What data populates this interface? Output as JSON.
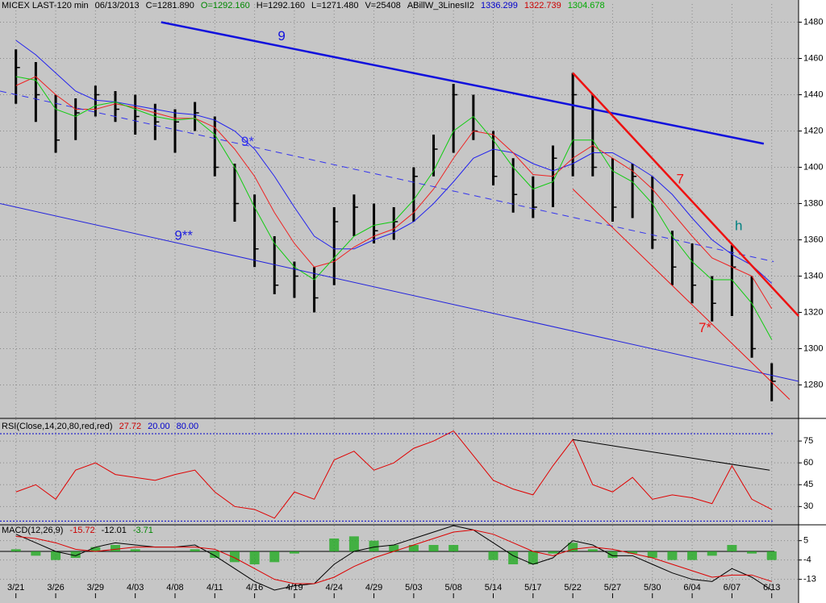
{
  "chart_data": [
    {
      "type": "ohlc",
      "header": [
        {
          "text": "MICEX LAST-120 min",
          "color": "#000000"
        },
        {
          "text": "06/13/2013",
          "color": "#000000"
        },
        {
          "text": "C=1281.890",
          "color": "#000000"
        },
        {
          "text": "O=1292.160",
          "color": "#008800"
        },
        {
          "text": "H=1292.160",
          "color": "#000000"
        },
        {
          "text": "L=1271.480",
          "color": "#000000"
        },
        {
          "text": "V=25408",
          "color": "#000000"
        },
        {
          "text": "ABillW_3LinesII2",
          "color": "#000000"
        },
        {
          "text": "1336.299",
          "color": "#0000cc"
        },
        {
          "text": "1322.739",
          "color": "#cc0000"
        },
        {
          "text": "1304.678",
          "color": "#00aa00"
        }
      ],
      "categories": [
        "3/21",
        null,
        "3/26",
        null,
        "3/29",
        null,
        "4/03",
        null,
        "4/08",
        null,
        "4/11",
        null,
        "4/16",
        null,
        "4/19",
        null,
        "4/24",
        null,
        "4/29",
        null,
        "5/03",
        null,
        "5/08",
        null,
        "5/14",
        null,
        "5/17",
        null,
        "5/22",
        null,
        "5/27",
        null,
        "5/30",
        null,
        "6/04",
        null,
        "6/07",
        null,
        "6/13"
      ],
      "high": [
        1465,
        1458,
        1440,
        1438,
        1445,
        1442,
        1440,
        1435,
        1432,
        1436,
        1428,
        1402,
        1385,
        1362,
        1348,
        1345,
        1378,
        1385,
        1380,
        1378,
        1400,
        1418,
        1446,
        1440,
        1420,
        1405,
        1395,
        1412,
        1452,
        1440,
        1405,
        1402,
        1395,
        1365,
        1358,
        1340,
        1357,
        1340,
        1292
      ],
      "low": [
        1435,
        1425,
        1408,
        1415,
        1428,
        1425,
        1418,
        1415,
        1408,
        1420,
        1395,
        1370,
        1345,
        1330,
        1328,
        1320,
        1335,
        1362,
        1358,
        1360,
        1370,
        1395,
        1408,
        1415,
        1390,
        1375,
        1372,
        1378,
        1395,
        1395,
        1370,
        1372,
        1355,
        1335,
        1325,
        1315,
        1318,
        1295,
        1271
      ],
      "close": [
        1455,
        1440,
        1415,
        1430,
        1440,
        1432,
        1428,
        1425,
        1425,
        1430,
        1400,
        1380,
        1355,
        1335,
        1340,
        1328,
        1370,
        1378,
        1365,
        1370,
        1395,
        1410,
        1440,
        1420,
        1395,
        1385,
        1378,
        1405,
        1440,
        1400,
        1378,
        1395,
        1360,
        1345,
        1335,
        1325,
        1345,
        1300,
        1282
      ],
      "bar_color": "#000000",
      "series": [
        {
          "color": "#2222ee",
          "values": [
            1470,
            1462,
            1452,
            1442,
            1437,
            1436,
            1434,
            1432,
            1430,
            1429,
            1426,
            1420,
            1410,
            1395,
            1378,
            1362,
            1355,
            1355,
            1360,
            1364,
            1370,
            1380,
            1392,
            1405,
            1410,
            1408,
            1402,
            1398,
            1402,
            1408,
            1408,
            1402,
            1395,
            1385,
            1372,
            1360,
            1352,
            1346,
            1336
          ]
        },
        {
          "color": "#ee2222",
          "values": [
            1445,
            1450,
            1440,
            1432,
            1432,
            1435,
            1433,
            1430,
            1427,
            1427,
            1422,
            1410,
            1395,
            1375,
            1358,
            1345,
            1348,
            1356,
            1362,
            1366,
            1375,
            1388,
            1405,
            1420,
            1418,
            1408,
            1396,
            1395,
            1405,
            1412,
            1405,
            1398,
            1388,
            1375,
            1362,
            1350,
            1345,
            1340,
            1322
          ]
        },
        {
          "color": "#11cc11",
          "values": [
            1450,
            1448,
            1432,
            1428,
            1434,
            1436,
            1432,
            1428,
            1426,
            1427,
            1418,
            1400,
            1378,
            1358,
            1345,
            1338,
            1350,
            1362,
            1368,
            1370,
            1382,
            1398,
            1420,
            1428,
            1415,
            1400,
            1388,
            1392,
            1415,
            1415,
            1398,
            1392,
            1380,
            1362,
            1348,
            1338,
            1338,
            1325,
            1305
          ]
        }
      ],
      "trendlines": [
        {
          "label": "9",
          "color": "#1111dd",
          "x": [
            7.3,
            37.6
          ],
          "y": [
            1480,
            1413
          ],
          "dashed": false,
          "bold": true
        },
        {
          "label": "9*",
          "color": "#3333ee",
          "x": [
            -0.8,
            38.1
          ],
          "y": [
            1442,
            1348
          ],
          "dashed": true,
          "bold": false
        },
        {
          "label": "9**",
          "color": "#2222dd",
          "x": [
            -0.8,
            39.35
          ],
          "y": [
            1380,
            1282
          ],
          "dashed": false,
          "bold": false
        },
        {
          "label": "7",
          "color": "#ee1111",
          "x": [
            28,
            39.35
          ],
          "y": [
            1452,
            1318
          ],
          "dashed": false,
          "bold": true
        },
        {
          "label": "7*",
          "color": "#ee1111",
          "x": [
            28,
            38.9
          ],
          "y": [
            1388,
            1272
          ],
          "dashed": false,
          "bold": false
        }
      ],
      "note": "h",
      "xlim": [
        -0.8,
        39.35
      ],
      "ylim": [
        1262,
        1490
      ],
      "yticks": [
        1280,
        1300,
        1320,
        1340,
        1360,
        1380,
        1400,
        1420,
        1440,
        1460,
        1480
      ],
      "grid": true
    },
    {
      "type": "line",
      "header": [
        {
          "text": "RSI(Close,14,20,80,red,red)",
          "color": "#000000"
        },
        {
          "text": "27.72",
          "color": "#cc0000"
        },
        {
          "text": "20.00",
          "color": "#0000cc"
        },
        {
          "text": "80.00",
          "color": "#0000cc"
        }
      ],
      "series": [
        {
          "color": "#e00000",
          "values": [
            40,
            45,
            35,
            55,
            60,
            52,
            50,
            48,
            52,
            55,
            40,
            30,
            28,
            22,
            40,
            35,
            62,
            68,
            55,
            60,
            70,
            75,
            82,
            65,
            48,
            42,
            38,
            58,
            76,
            45,
            40,
            50,
            35,
            38,
            36,
            32,
            58,
            35,
            28
          ]
        }
      ],
      "trendlines": [
        {
          "color": "#000000",
          "x": [
            28,
            37.9
          ],
          "y": [
            76,
            55
          ],
          "dashed": false,
          "bold": false
        }
      ],
      "hlines": [
        20,
        80
      ],
      "hline_color": "#0000cc",
      "ylim": [
        18,
        90
      ],
      "yticks": [
        30,
        45,
        60,
        75
      ],
      "grid": true
    },
    {
      "type": "macd",
      "header": [
        {
          "text": "MACD(12,26,9)",
          "color": "#000000"
        },
        {
          "text": "-15.72",
          "color": "#cc0000"
        },
        {
          "text": "-12.01",
          "color": "#000000"
        },
        {
          "text": "-3.71",
          "color": "#008800"
        }
      ],
      "series": [
        {
          "color": "#000000",
          "values": [
            8,
            4,
            0,
            -2,
            2,
            4,
            3,
            2,
            2,
            3,
            -2,
            -8,
            -14,
            -18,
            -16,
            -15,
            -6,
            0,
            2,
            3,
            6,
            9,
            12,
            10,
            4,
            -2,
            -6,
            -3,
            5,
            3,
            -2,
            -2,
            -6,
            -10,
            -13,
            -14,
            -8,
            -12,
            -18
          ]
        },
        {
          "color": "#dd0000",
          "values": [
            7,
            6,
            4,
            1,
            0,
            1,
            2,
            2,
            2,
            2,
            1,
            -3,
            -8,
            -13,
            -15,
            -15,
            -12,
            -7,
            -3,
            0,
            3,
            6,
            9,
            10,
            8,
            4,
            0,
            -2,
            1,
            2,
            1,
            -1,
            -3,
            -6,
            -9,
            -12,
            -11,
            -11,
            -14
          ]
        }
      ],
      "histogram": {
        "color": "#22aa22",
        "values": [
          1,
          -2,
          -4,
          -3,
          2,
          3,
          1,
          0,
          0,
          1,
          -3,
          -5,
          -6,
          -5,
          -1,
          0,
          6,
          7,
          5,
          3,
          3,
          3,
          3,
          0,
          -4,
          -6,
          -6,
          -1,
          4,
          1,
          -3,
          -1,
          -3,
          -4,
          -4,
          -2,
          3,
          -1,
          -4
        ]
      },
      "hlines": [
        0
      ],
      "hline_color": "#000000",
      "ylim": [
        -21,
        12
      ],
      "yticks": [
        5,
        -4,
        -13
      ],
      "grid": true
    }
  ]
}
